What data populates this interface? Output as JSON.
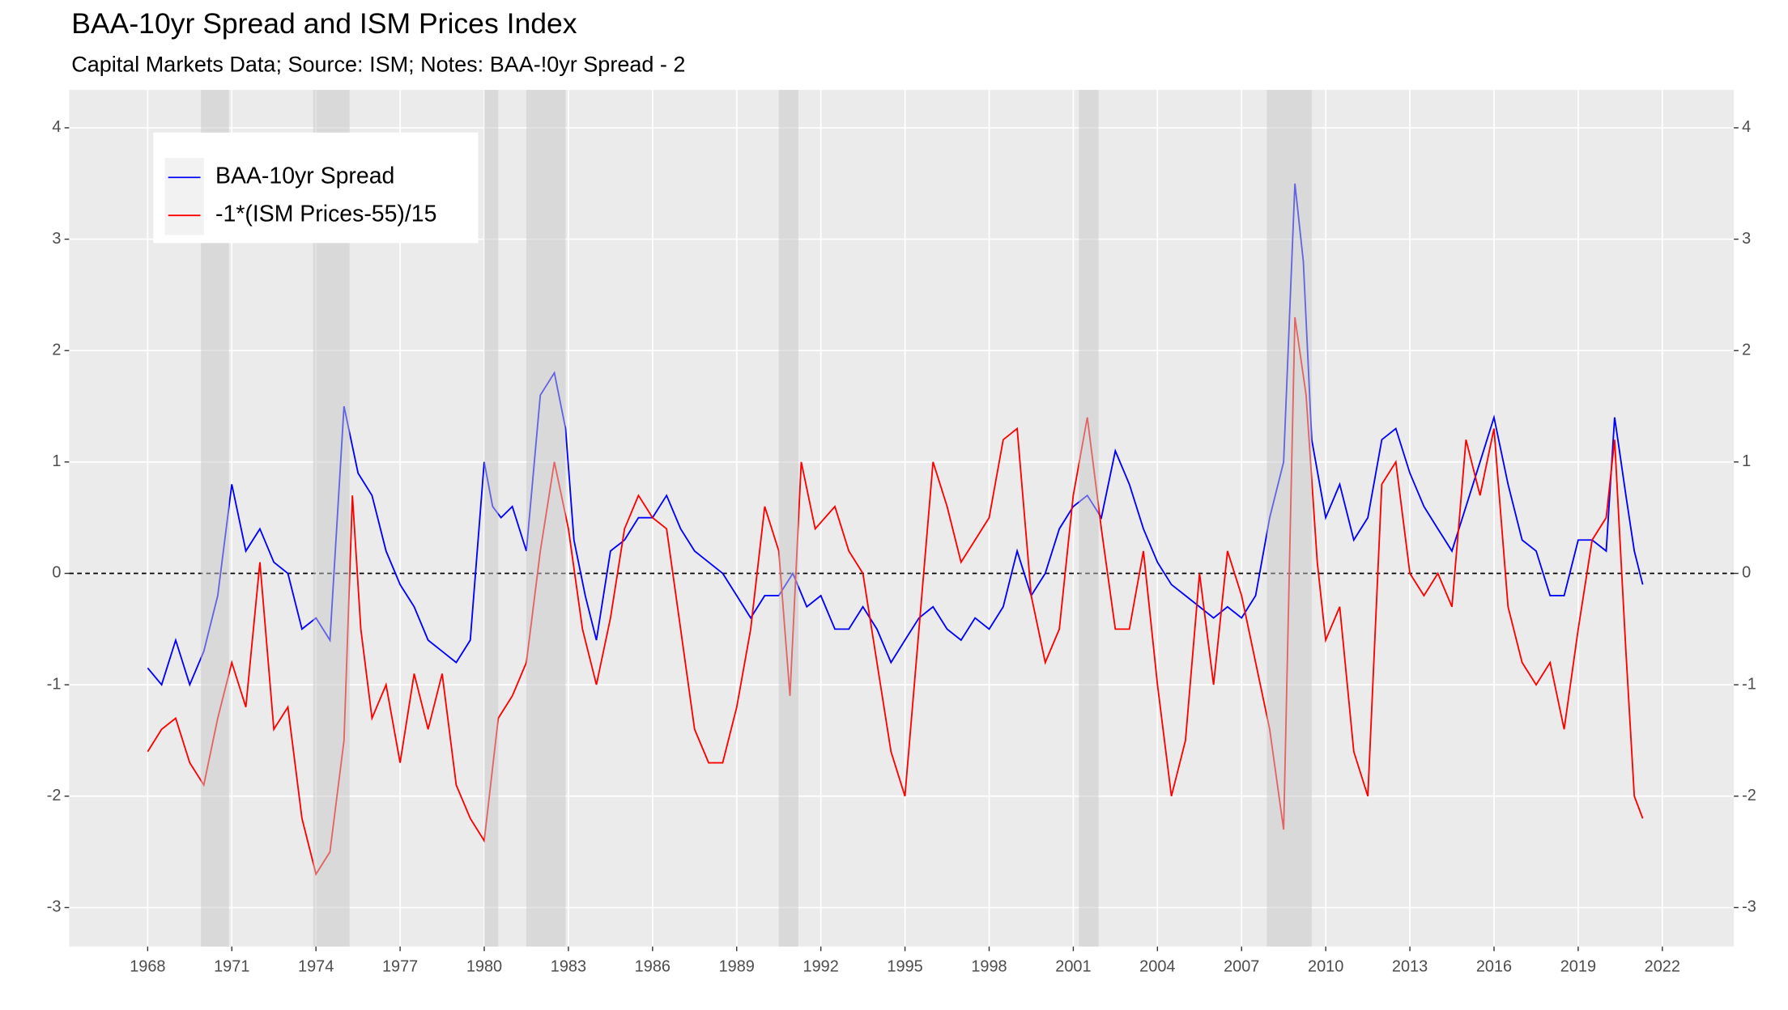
{
  "chart_data": {
    "type": "line",
    "title": "BAA-10yr Spread and ISM Prices Index",
    "subtitle": "Capital Markets Data; Source: ISM; Notes: BAA-!0yr Spread - 2",
    "xlim": [
      1965.2,
      2024.55
    ],
    "xticks": [
      1968,
      1971,
      1974,
      1977,
      1980,
      1983,
      1986,
      1989,
      1992,
      1995,
      1998,
      2001,
      2004,
      2007,
      2010,
      2013,
      2016,
      2019,
      2022
    ],
    "ylim": [
      -3.35,
      4.34
    ],
    "yticks": [
      -3,
      -2,
      -1,
      0,
      1,
      2,
      3,
      4
    ],
    "grid": true,
    "legend": "top-left",
    "hline": 0,
    "shaded_periods": [
      [
        1969.9,
        1970.9
      ],
      [
        1973.9,
        1975.2
      ],
      [
        1980.0,
        1980.5
      ],
      [
        1981.5,
        1982.9
      ],
      [
        1990.5,
        1991.2
      ],
      [
        2001.2,
        2001.9
      ],
      [
        2007.9,
        2009.5
      ]
    ],
    "series": [
      {
        "name": "BAA-10yr Spread",
        "color": "#0000ff",
        "x": [
          1968.0,
          1968.5,
          1969.0,
          1969.5,
          1970.0,
          1970.5,
          1971.0,
          1971.5,
          1972.0,
          1972.5,
          1973.0,
          1973.5,
          1974.0,
          1974.5,
          1975.0,
          1975.5,
          1976.0,
          1976.5,
          1977.0,
          1977.5,
          1978.0,
          1978.5,
          1979.0,
          1979.5,
          1980.0,
          1980.3,
          1980.6,
          1981.0,
          1981.5,
          1982.0,
          1982.5,
          1982.9,
          1983.2,
          1983.6,
          1984.0,
          1984.5,
          1985.0,
          1985.5,
          1986.0,
          1986.5,
          1987.0,
          1987.5,
          1988.0,
          1988.5,
          1989.0,
          1989.5,
          1990.0,
          1990.5,
          1991.0,
          1991.5,
          1992.0,
          1992.5,
          1993.0,
          1993.5,
          1994.0,
          1994.5,
          1995.0,
          1995.5,
          1996.0,
          1996.5,
          1997.0,
          1997.5,
          1998.0,
          1998.5,
          1999.0,
          1999.5,
          2000.0,
          2000.5,
          2001.0,
          2001.5,
          2002.0,
          2002.5,
          2003.0,
          2003.5,
          2004.0,
          2004.5,
          2005.0,
          2005.5,
          2006.0,
          2006.5,
          2007.0,
          2007.5,
          2008.0,
          2008.5,
          2008.9,
          2009.2,
          2009.5,
          2010.0,
          2010.5,
          2011.0,
          2011.5,
          2012.0,
          2012.5,
          2013.0,
          2013.5,
          2014.0,
          2014.5,
          2015.0,
          2015.5,
          2016.0,
          2016.5,
          2017.0,
          2017.5,
          2018.0,
          2018.5,
          2019.0,
          2019.5,
          2020.0,
          2020.3,
          2020.7,
          2021.0,
          2021.3
        ],
        "values": [
          -0.85,
          -1.0,
          -0.6,
          -1.0,
          -0.7,
          -0.2,
          0.8,
          0.2,
          0.4,
          0.1,
          0.0,
          -0.5,
          -0.4,
          -0.6,
          1.5,
          0.9,
          0.7,
          0.2,
          -0.1,
          -0.3,
          -0.6,
          -0.7,
          -0.8,
          -0.6,
          1.0,
          0.6,
          0.5,
          0.6,
          0.2,
          1.6,
          1.8,
          1.3,
          0.3,
          -0.2,
          -0.6,
          0.2,
          0.3,
          0.5,
          0.5,
          0.7,
          0.4,
          0.2,
          0.1,
          0.0,
          -0.2,
          -0.4,
          -0.2,
          -0.2,
          0.0,
          -0.3,
          -0.2,
          -0.5,
          -0.5,
          -0.3,
          -0.5,
          -0.8,
          -0.6,
          -0.4,
          -0.3,
          -0.5,
          -0.6,
          -0.4,
          -0.5,
          -0.3,
          0.2,
          -0.2,
          0.0,
          0.4,
          0.6,
          0.7,
          0.5,
          1.1,
          0.8,
          0.4,
          0.1,
          -0.1,
          -0.2,
          -0.3,
          -0.4,
          -0.3,
          -0.4,
          -0.2,
          0.5,
          1.0,
          3.5,
          2.8,
          1.2,
          0.5,
          0.8,
          0.3,
          0.5,
          1.2,
          1.3,
          0.9,
          0.6,
          0.4,
          0.2,
          0.6,
          1.0,
          1.4,
          0.8,
          0.3,
          0.2,
          -0.2,
          -0.2,
          0.3,
          0.3,
          0.2,
          1.4,
          0.7,
          0.2,
          -0.1
        ]
      },
      {
        "name": "-1*(ISM Prices-55)/15",
        "color": "#ff0000",
        "x": [
          1968.0,
          1968.5,
          1969.0,
          1969.5,
          1970.0,
          1970.5,
          1971.0,
          1971.5,
          1972.0,
          1972.5,
          1973.0,
          1973.5,
          1974.0,
          1974.5,
          1975.0,
          1975.3,
          1975.6,
          1976.0,
          1976.5,
          1977.0,
          1977.5,
          1978.0,
          1978.5,
          1979.0,
          1979.5,
          1980.0,
          1980.5,
          1981.0,
          1981.5,
          1982.0,
          1982.5,
          1983.0,
          1983.5,
          1984.0,
          1984.5,
          1985.0,
          1985.5,
          1986.0,
          1986.5,
          1987.0,
          1987.5,
          1988.0,
          1988.5,
          1989.0,
          1989.5,
          1990.0,
          1990.5,
          1990.9,
          1991.3,
          1991.8,
          1992.5,
          1993.0,
          1993.5,
          1994.0,
          1994.5,
          1995.0,
          1995.5,
          1996.0,
          1996.5,
          1997.0,
          1997.5,
          1998.0,
          1998.5,
          1999.0,
          1999.5,
          2000.0,
          2000.5,
          2001.0,
          2001.5,
          2002.0,
          2002.5,
          2003.0,
          2003.5,
          2004.0,
          2004.5,
          2005.0,
          2005.5,
          2006.0,
          2006.5,
          2007.0,
          2007.5,
          2008.0,
          2008.5,
          2008.9,
          2009.3,
          2009.7,
          2010.0,
          2010.5,
          2011.0,
          2011.5,
          2012.0,
          2012.5,
          2013.0,
          2013.5,
          2014.0,
          2014.5,
          2015.0,
          2015.5,
          2016.0,
          2016.5,
          2017.0,
          2017.5,
          2018.0,
          2018.5,
          2019.0,
          2019.5,
          2020.0,
          2020.3,
          2020.7,
          2021.0,
          2021.3
        ],
        "values": [
          -1.6,
          -1.4,
          -1.3,
          -1.7,
          -1.9,
          -1.3,
          -0.8,
          -1.2,
          0.1,
          -1.4,
          -1.2,
          -2.2,
          -2.7,
          -2.5,
          -1.5,
          0.7,
          -0.5,
          -1.3,
          -1.0,
          -1.7,
          -0.9,
          -1.4,
          -0.9,
          -1.9,
          -2.2,
          -2.4,
          -1.3,
          -1.1,
          -0.8,
          0.2,
          1.0,
          0.4,
          -0.5,
          -1.0,
          -0.4,
          0.4,
          0.7,
          0.5,
          0.4,
          -0.5,
          -1.4,
          -1.7,
          -1.7,
          -1.2,
          -0.5,
          0.6,
          0.2,
          -1.1,
          1.0,
          0.4,
          0.6,
          0.2,
          0.0,
          -0.8,
          -1.6,
          -2.0,
          -0.5,
          1.0,
          0.6,
          0.1,
          0.3,
          0.5,
          1.2,
          1.3,
          -0.2,
          -0.8,
          -0.5,
          0.7,
          1.4,
          0.4,
          -0.5,
          -0.5,
          0.2,
          -1.0,
          -2.0,
          -1.5,
          0.0,
          -1.0,
          0.2,
          -0.2,
          -0.8,
          -1.4,
          -2.3,
          2.3,
          1.6,
          0.1,
          -0.6,
          -0.3,
          -1.6,
          -2.0,
          0.8,
          1.0,
          0.0,
          -0.2,
          0.0,
          -0.3,
          1.2,
          0.7,
          1.3,
          -0.3,
          -0.8,
          -1.0,
          -0.8,
          -1.4,
          -0.5,
          0.3,
          0.5,
          1.2,
          -0.7,
          -2.0,
          -2.2
        ]
      }
    ]
  }
}
